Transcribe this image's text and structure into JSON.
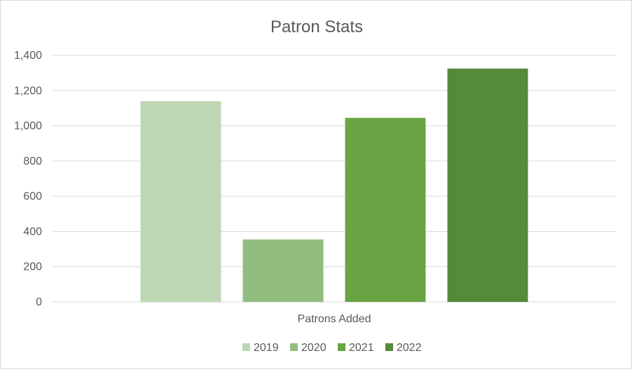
{
  "chart_data": {
    "type": "bar",
    "title": "Patron Stats",
    "categories": [
      "Patrons Added"
    ],
    "series": [
      {
        "name": "2019",
        "values": [
          1140
        ],
        "color": "#bdd7b4"
      },
      {
        "name": "2020",
        "values": [
          355
        ],
        "color": "#93bd7e"
      },
      {
        "name": "2021",
        "values": [
          1045
        ],
        "color": "#69a444"
      },
      {
        "name": "2022",
        "values": [
          1325
        ],
        "color": "#548a38"
      }
    ],
    "ylim": [
      0,
      1400
    ],
    "yticks": [
      "0",
      "200",
      "400",
      "600",
      "800",
      "1,000",
      "1,200",
      "1,400"
    ],
    "ytick_values": [
      0,
      200,
      400,
      600,
      800,
      1000,
      1200,
      1400
    ],
    "grid": true,
    "legend_position": "bottom"
  }
}
